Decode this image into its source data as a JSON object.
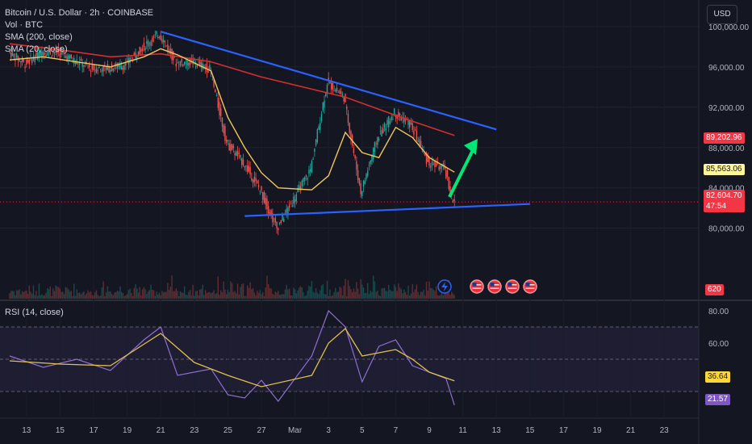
{
  "header": {
    "title": "Bitcoin / U.S. Dollar · 2h · COINBASE",
    "indicators": [
      "Vol · BTC",
      "SMA (200, close)",
      "SMA (20, close)"
    ]
  },
  "toolbar": {
    "currency_label": "USD"
  },
  "price_tags": {
    "sma200": {
      "value": "89,202.96",
      "color": "#f23645"
    },
    "sma20": {
      "value": "85,563.06",
      "color": "#fff59d"
    },
    "last": {
      "value": "82,604.70",
      "countdown": "47:54",
      "color": "#f23645"
    },
    "volume": {
      "value": "620",
      "color": "#f23645"
    }
  },
  "rsi_panel": {
    "label": "RSI (14, close)",
    "rsi_value": "21.57",
    "ma_value": "36.64",
    "rsi_color": "#7e57c2",
    "ma_color": "#fdd835"
  },
  "event_icons": [
    "flash-icon",
    "us-flag-icon",
    "us-flag-icon",
    "us-flag-icon",
    "us-flag-icon"
  ],
  "colors": {
    "trendline": "#2962ff",
    "arrow": "#00e676",
    "up": "#26a69a",
    "down": "#ef5350"
  },
  "chart_data": [
    {
      "type": "candlestick",
      "title": "Bitcoin / U.S. Dollar · 2h · COINBASE",
      "y_ticks": [
        80000,
        84000,
        88000,
        92000,
        96000,
        100000
      ],
      "y_tick_labels": [
        "80,000.00",
        "84,000.00",
        "88,000.00",
        "92,000.00",
        "96,000.00",
        "100,000.00"
      ],
      "ylim": [
        73000,
        102000
      ],
      "x_ticks": [
        "13",
        "15",
        "17",
        "19",
        "21",
        "23",
        "25",
        "27",
        "Mar",
        "3",
        "5",
        "7",
        "9",
        "11",
        "13",
        "15",
        "17",
        "19",
        "21",
        "23"
      ],
      "price_path": [
        {
          "x": "Feb 12",
          "y": 97500
        },
        {
          "x": "Feb 13",
          "y": 96300
        },
        {
          "x": "Feb 14",
          "y": 97500
        },
        {
          "x": "Feb 15",
          "y": 97400
        },
        {
          "x": "Feb 16",
          "y": 96600
        },
        {
          "x": "Feb 17",
          "y": 95800
        },
        {
          "x": "Feb 18",
          "y": 95900
        },
        {
          "x": "Feb 19",
          "y": 96200
        },
        {
          "x": "Feb 20",
          "y": 98000
        },
        {
          "x": "Feb 21",
          "y": 99300
        },
        {
          "x": "Feb 22",
          "y": 96400
        },
        {
          "x": "Feb 23",
          "y": 96500
        },
        {
          "x": "Feb 24",
          "y": 95800
        },
        {
          "x": "Feb 25",
          "y": 88500
        },
        {
          "x": "Feb 26",
          "y": 86500
        },
        {
          "x": "Feb 27",
          "y": 83800
        },
        {
          "x": "Feb 28",
          "y": 80000
        },
        {
          "x": "Mar 1",
          "y": 85800
        },
        {
          "x": "Mar 2",
          "y": 94500
        },
        {
          "x": "Mar 3",
          "y": 93000
        },
        {
          "x": "Mar 4",
          "y": 83500
        },
        {
          "x": "Mar 5",
          "y": 89000
        },
        {
          "x": "Mar 6",
          "y": 91500
        },
        {
          "x": "Mar 7",
          "y": 90200
        },
        {
          "x": "Mar 8",
          "y": 86500
        },
        {
          "x": "Mar 9",
          "y": 85900
        },
        {
          "x": "Mar 9.5",
          "y": 82600
        }
      ],
      "sma20": [
        {
          "x": "Feb 12",
          "y": 96700
        },
        {
          "x": "Feb 14",
          "y": 97000
        },
        {
          "x": "Feb 16",
          "y": 96500
        },
        {
          "x": "Feb 18",
          "y": 96000
        },
        {
          "x": "Feb 20",
          "y": 97000
        },
        {
          "x": "Feb 21",
          "y": 97800
        },
        {
          "x": "Feb 22",
          "y": 97200
        },
        {
          "x": "Feb 24",
          "y": 95600
        },
        {
          "x": "Feb 25",
          "y": 91000
        },
        {
          "x": "Feb 26",
          "y": 88000
        },
        {
          "x": "Feb 27",
          "y": 85500
        },
        {
          "x": "Feb 28",
          "y": 84000
        },
        {
          "x": "Mar 1",
          "y": 83800
        },
        {
          "x": "Mar 2",
          "y": 85200
        },
        {
          "x": "Mar 3",
          "y": 89500
        },
        {
          "x": "Mar 4",
          "y": 87500
        },
        {
          "x": "Mar 5",
          "y": 87000
        },
        {
          "x": "Mar 6",
          "y": 90000
        },
        {
          "x": "Mar 7",
          "y": 89000
        },
        {
          "x": "Mar 8",
          "y": 87000
        },
        {
          "x": "Mar 9.5",
          "y": 85563
        }
      ],
      "sma200": [
        {
          "x": "Feb 12",
          "y": 98300
        },
        {
          "x": "Feb 15",
          "y": 97700
        },
        {
          "x": "Feb 18",
          "y": 97000
        },
        {
          "x": "Feb 21",
          "y": 97300
        },
        {
          "x": "Feb 24",
          "y": 96500
        },
        {
          "x": "Feb 27",
          "y": 95000
        },
        {
          "x": "Mar 1",
          "y": 93800
        },
        {
          "x": "Mar 3",
          "y": 93000
        },
        {
          "x": "Mar 5",
          "y": 91800
        },
        {
          "x": "Mar 7",
          "y": 90600
        },
        {
          "x": "Mar 9.5",
          "y": 89203
        }
      ],
      "trendline_upper": [
        {
          "x": "Feb 21",
          "y": 99500
        },
        {
          "x": "Mar 12",
          "y": 89800
        }
      ],
      "trendline_lower": [
        {
          "x": "Feb 26",
          "y": 81200
        },
        {
          "x": "Mar 14",
          "y": 82400
        }
      ],
      "last_price": 82604.7
    },
    {
      "type": "line",
      "title": "RSI (14, close)",
      "y_ticks": [
        40,
        60,
        80
      ],
      "y_tick_labels": [
        "40.00",
        "60.00",
        "80.00"
      ],
      "ylim": [
        15,
        85
      ],
      "bands": [
        30,
        50,
        70
      ],
      "rsi": [
        {
          "x": "Feb 12",
          "y": 52
        },
        {
          "x": "Feb 14",
          "y": 45
        },
        {
          "x": "Feb 16",
          "y": 50
        },
        {
          "x": "Feb 18",
          "y": 43
        },
        {
          "x": "Feb 20",
          "y": 62
        },
        {
          "x": "Feb 21",
          "y": 70
        },
        {
          "x": "Feb 22",
          "y": 40
        },
        {
          "x": "Feb 24",
          "y": 44
        },
        {
          "x": "Feb 25",
          "y": 28
        },
        {
          "x": "Feb 26",
          "y": 26
        },
        {
          "x": "Feb 27",
          "y": 37
        },
        {
          "x": "Feb 28",
          "y": 24
        },
        {
          "x": "Mar 1",
          "y": 52
        },
        {
          "x": "Mar 2",
          "y": 80
        },
        {
          "x": "Mar 3",
          "y": 70
        },
        {
          "x": "Mar 4",
          "y": 36
        },
        {
          "x": "Mar 5",
          "y": 58
        },
        {
          "x": "Mar 6",
          "y": 62
        },
        {
          "x": "Mar 7",
          "y": 46
        },
        {
          "x": "Mar 8",
          "y": 42
        },
        {
          "x": "Mar 9",
          "y": 38
        },
        {
          "x": "Mar 9.5",
          "y": 21.57
        }
      ],
      "rsi_ma": [
        {
          "x": "Feb 12",
          "y": 49
        },
        {
          "x": "Feb 15",
          "y": 47
        },
        {
          "x": "Feb 18",
          "y": 46
        },
        {
          "x": "Feb 21",
          "y": 66
        },
        {
          "x": "Feb 23",
          "y": 48
        },
        {
          "x": "Feb 25",
          "y": 40
        },
        {
          "x": "Feb 27",
          "y": 33
        },
        {
          "x": "Mar 1",
          "y": 40
        },
        {
          "x": "Mar 2",
          "y": 60
        },
        {
          "x": "Mar 3",
          "y": 69
        },
        {
          "x": "Mar 4",
          "y": 52
        },
        {
          "x": "Mar 5",
          "y": 54
        },
        {
          "x": "Mar 6",
          "y": 56
        },
        {
          "x": "Mar 7",
          "y": 50
        },
        {
          "x": "Mar 8",
          "y": 42
        },
        {
          "x": "Mar 9.5",
          "y": 36.64
        }
      ]
    }
  ]
}
